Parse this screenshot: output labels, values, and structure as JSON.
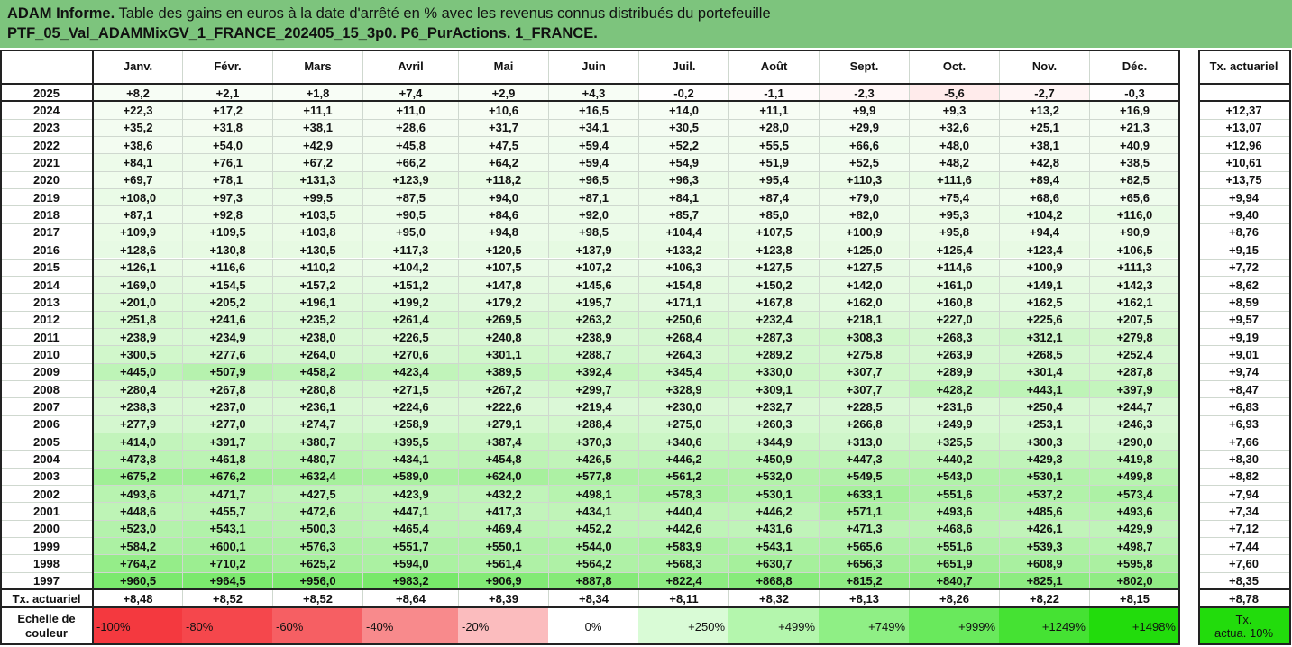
{
  "title": {
    "line1_prefix": "ADAM Informe.",
    "line1_rest": " Table des gains en euros à la date d'arrêté en % avec les revenus connus distribués du portefeuille",
    "line2": "PTF_05_Val_ADAMMixGV_1_FRANCE_202405_15_3p0. P6_PurActions. 1_FRANCE."
  },
  "months": [
    "Janv.",
    "Févr.",
    "Mars",
    "Avril",
    "Mai",
    "Juin",
    "Juil.",
    "Août",
    "Sept.",
    "Oct.",
    "Nov.",
    "Déc."
  ],
  "rate_header": "Tx. actuariel",
  "rows": [
    {
      "year": "2025",
      "values": [
        "+8,2",
        "+2,1",
        "+1,8",
        "+7,4",
        "+2,9",
        "+4,3",
        "-0,2",
        "-1,1",
        "-2,3",
        "-5,6",
        "-2,7",
        "-0,3"
      ],
      "rate": ""
    },
    {
      "year": "2024",
      "values": [
        "+22,3",
        "+17,2",
        "+11,1",
        "+11,0",
        "+10,6",
        "+16,5",
        "+14,0",
        "+11,1",
        "+9,9",
        "+9,3",
        "+13,2",
        "+16,9"
      ],
      "rate": "+12,37"
    },
    {
      "year": "2023",
      "values": [
        "+35,2",
        "+31,8",
        "+38,1",
        "+28,6",
        "+31,7",
        "+34,1",
        "+30,5",
        "+28,0",
        "+29,9",
        "+32,6",
        "+25,1",
        "+21,3"
      ],
      "rate": "+13,07"
    },
    {
      "year": "2022",
      "values": [
        "+38,6",
        "+54,0",
        "+42,9",
        "+45,8",
        "+47,5",
        "+59,4",
        "+52,2",
        "+55,5",
        "+66,6",
        "+48,0",
        "+38,1",
        "+40,9"
      ],
      "rate": "+12,96"
    },
    {
      "year": "2021",
      "values": [
        "+84,1",
        "+76,1",
        "+67,2",
        "+66,2",
        "+64,2",
        "+59,4",
        "+54,9",
        "+51,9",
        "+52,5",
        "+48,2",
        "+42,8",
        "+38,5"
      ],
      "rate": "+10,61"
    },
    {
      "year": "2020",
      "values": [
        "+69,7",
        "+78,1",
        "+131,3",
        "+123,9",
        "+118,2",
        "+96,5",
        "+96,3",
        "+95,4",
        "+110,3",
        "+111,6",
        "+89,4",
        "+82,5"
      ],
      "rate": "+13,75"
    },
    {
      "year": "2019",
      "values": [
        "+108,0",
        "+97,3",
        "+99,5",
        "+87,5",
        "+94,0",
        "+87,1",
        "+84,1",
        "+87,4",
        "+79,0",
        "+75,4",
        "+68,6",
        "+65,6"
      ],
      "rate": "+9,94"
    },
    {
      "year": "2018",
      "values": [
        "+87,1",
        "+92,8",
        "+103,5",
        "+90,5",
        "+84,6",
        "+92,0",
        "+85,7",
        "+85,0",
        "+82,0",
        "+95,3",
        "+104,2",
        "+116,0"
      ],
      "rate": "+9,40"
    },
    {
      "year": "2017",
      "values": [
        "+109,9",
        "+109,5",
        "+103,8",
        "+95,0",
        "+94,8",
        "+98,5",
        "+104,4",
        "+107,5",
        "+100,9",
        "+95,8",
        "+94,4",
        "+90,9"
      ],
      "rate": "+8,76"
    },
    {
      "year": "2016",
      "values": [
        "+128,6",
        "+130,8",
        "+130,5",
        "+117,3",
        "+120,5",
        "+137,9",
        "+133,2",
        "+123,8",
        "+125,0",
        "+125,4",
        "+123,4",
        "+106,5"
      ],
      "rate": "+9,15"
    },
    {
      "year": "2015",
      "values": [
        "+126,1",
        "+116,6",
        "+110,2",
        "+104,2",
        "+107,5",
        "+107,2",
        "+106,3",
        "+127,5",
        "+127,5",
        "+114,6",
        "+100,9",
        "+111,3"
      ],
      "rate": "+7,72"
    },
    {
      "year": "2014",
      "values": [
        "+169,0",
        "+154,5",
        "+157,2",
        "+151,2",
        "+147,8",
        "+145,6",
        "+154,8",
        "+150,2",
        "+142,0",
        "+161,0",
        "+149,1",
        "+142,3"
      ],
      "rate": "+8,62"
    },
    {
      "year": "2013",
      "values": [
        "+201,0",
        "+205,2",
        "+196,1",
        "+199,2",
        "+179,2",
        "+195,7",
        "+171,1",
        "+167,8",
        "+162,0",
        "+160,8",
        "+162,5",
        "+162,1"
      ],
      "rate": "+8,59"
    },
    {
      "year": "2012",
      "values": [
        "+251,8",
        "+241,6",
        "+235,2",
        "+261,4",
        "+269,5",
        "+263,2",
        "+250,6",
        "+232,4",
        "+218,1",
        "+227,0",
        "+225,6",
        "+207,5"
      ],
      "rate": "+9,57"
    },
    {
      "year": "2011",
      "values": [
        "+238,9",
        "+234,9",
        "+238,0",
        "+226,5",
        "+240,8",
        "+238,9",
        "+268,4",
        "+287,3",
        "+308,3",
        "+268,3",
        "+312,1",
        "+279,8"
      ],
      "rate": "+9,19"
    },
    {
      "year": "2010",
      "values": [
        "+300,5",
        "+277,6",
        "+264,0",
        "+270,6",
        "+301,1",
        "+288,7",
        "+264,3",
        "+289,2",
        "+275,8",
        "+263,9",
        "+268,5",
        "+252,4"
      ],
      "rate": "+9,01"
    },
    {
      "year": "2009",
      "values": [
        "+445,0",
        "+507,9",
        "+458,2",
        "+423,4",
        "+389,5",
        "+392,4",
        "+345,4",
        "+330,0",
        "+307,7",
        "+289,9",
        "+301,4",
        "+287,8"
      ],
      "rate": "+9,74"
    },
    {
      "year": "2008",
      "values": [
        "+280,4",
        "+267,8",
        "+280,8",
        "+271,5",
        "+267,2",
        "+299,7",
        "+328,9",
        "+309,1",
        "+307,7",
        "+428,2",
        "+443,1",
        "+397,9"
      ],
      "rate": "+8,47"
    },
    {
      "year": "2007",
      "values": [
        "+238,3",
        "+237,0",
        "+236,1",
        "+224,6",
        "+222,6",
        "+219,4",
        "+230,0",
        "+232,7",
        "+228,5",
        "+231,6",
        "+250,4",
        "+244,7"
      ],
      "rate": "+6,83"
    },
    {
      "year": "2006",
      "values": [
        "+277,9",
        "+277,0",
        "+274,7",
        "+258,9",
        "+279,1",
        "+288,4",
        "+275,0",
        "+260,3",
        "+266,8",
        "+249,9",
        "+253,1",
        "+246,3"
      ],
      "rate": "+6,93"
    },
    {
      "year": "2005",
      "values": [
        "+414,0",
        "+391,7",
        "+380,7",
        "+395,5",
        "+387,4",
        "+370,3",
        "+340,6",
        "+344,9",
        "+313,0",
        "+325,5",
        "+300,3",
        "+290,0"
      ],
      "rate": "+7,66"
    },
    {
      "year": "2004",
      "values": [
        "+473,8",
        "+461,8",
        "+480,7",
        "+434,1",
        "+454,8",
        "+426,5",
        "+446,2",
        "+450,9",
        "+447,3",
        "+440,2",
        "+429,3",
        "+419,8"
      ],
      "rate": "+8,30"
    },
    {
      "year": "2003",
      "values": [
        "+675,2",
        "+676,2",
        "+632,4",
        "+589,0",
        "+624,0",
        "+577,8",
        "+561,2",
        "+532,0",
        "+549,5",
        "+543,0",
        "+530,1",
        "+499,8"
      ],
      "rate": "+8,82"
    },
    {
      "year": "2002",
      "values": [
        "+493,6",
        "+471,7",
        "+427,5",
        "+423,9",
        "+432,2",
        "+498,1",
        "+578,3",
        "+530,1",
        "+633,1",
        "+551,6",
        "+537,2",
        "+573,4"
      ],
      "rate": "+7,94"
    },
    {
      "year": "2001",
      "values": [
        "+448,6",
        "+455,7",
        "+472,6",
        "+447,1",
        "+417,3",
        "+434,1",
        "+440,4",
        "+446,2",
        "+571,1",
        "+493,6",
        "+485,6",
        "+493,6"
      ],
      "rate": "+7,34"
    },
    {
      "year": "2000",
      "values": [
        "+523,0",
        "+543,1",
        "+500,3",
        "+465,4",
        "+469,4",
        "+452,2",
        "+442,6",
        "+431,6",
        "+471,3",
        "+468,6",
        "+426,1",
        "+429,9"
      ],
      "rate": "+7,12"
    },
    {
      "year": "1999",
      "values": [
        "+584,2",
        "+600,1",
        "+576,3",
        "+551,7",
        "+550,1",
        "+544,0",
        "+583,9",
        "+543,1",
        "+565,6",
        "+551,6",
        "+539,3",
        "+498,7"
      ],
      "rate": "+7,44"
    },
    {
      "year": "1998",
      "values": [
        "+764,2",
        "+710,2",
        "+625,2",
        "+594,0",
        "+561,4",
        "+564,2",
        "+568,3",
        "+630,7",
        "+656,3",
        "+651,9",
        "+608,9",
        "+595,8"
      ],
      "rate": "+7,60"
    },
    {
      "year": "1997",
      "values": [
        "+960,5",
        "+964,5",
        "+956,0",
        "+983,2",
        "+906,9",
        "+887,8",
        "+822,4",
        "+868,8",
        "+815,2",
        "+840,7",
        "+825,1",
        "+802,0"
      ],
      "rate": "+8,35"
    }
  ],
  "footer_row": {
    "label": "Tx. actuariel",
    "values": [
      "+8,48",
      "+8,52",
      "+8,52",
      "+8,64",
      "+8,39",
      "+8,34",
      "+8,11",
      "+8,32",
      "+8,13",
      "+8,26",
      "+8,22",
      "+8,15"
    ],
    "rate": "+8,78"
  },
  "scale": {
    "label_line1": "Echelle de",
    "label_line2": "couleur",
    "items": [
      {
        "label": "-100%",
        "color": "#f4393f",
        "align": "left"
      },
      {
        "label": "-80%",
        "color": "#f5474c",
        "align": "left"
      },
      {
        "label": "-60%",
        "color": "#f65f63",
        "align": "left"
      },
      {
        "label": "-40%",
        "color": "#f88a8c",
        "align": "left"
      },
      {
        "label": "-20%",
        "color": "#fbbcbe",
        "align": "left"
      },
      {
        "label": "0%",
        "color": "#ffffff",
        "align": "center"
      },
      {
        "label": "+250%",
        "color": "#d9fbd6",
        "align": "right"
      },
      {
        "label": "+499%",
        "color": "#b4f6ad",
        "align": "right"
      },
      {
        "label": "+749%",
        "color": "#8fef85",
        "align": "right"
      },
      {
        "label": "+999%",
        "color": "#69e95c",
        "align": "right"
      },
      {
        "label": "+1249%",
        "color": "#45e233",
        "align": "right"
      },
      {
        "label": "+1498%",
        "color": "#22dc0c",
        "align": "right"
      }
    ],
    "rate_line1": "Tx.",
    "rate_line2": "actua. 10%",
    "rate_color": "#22dc0c"
  }
}
